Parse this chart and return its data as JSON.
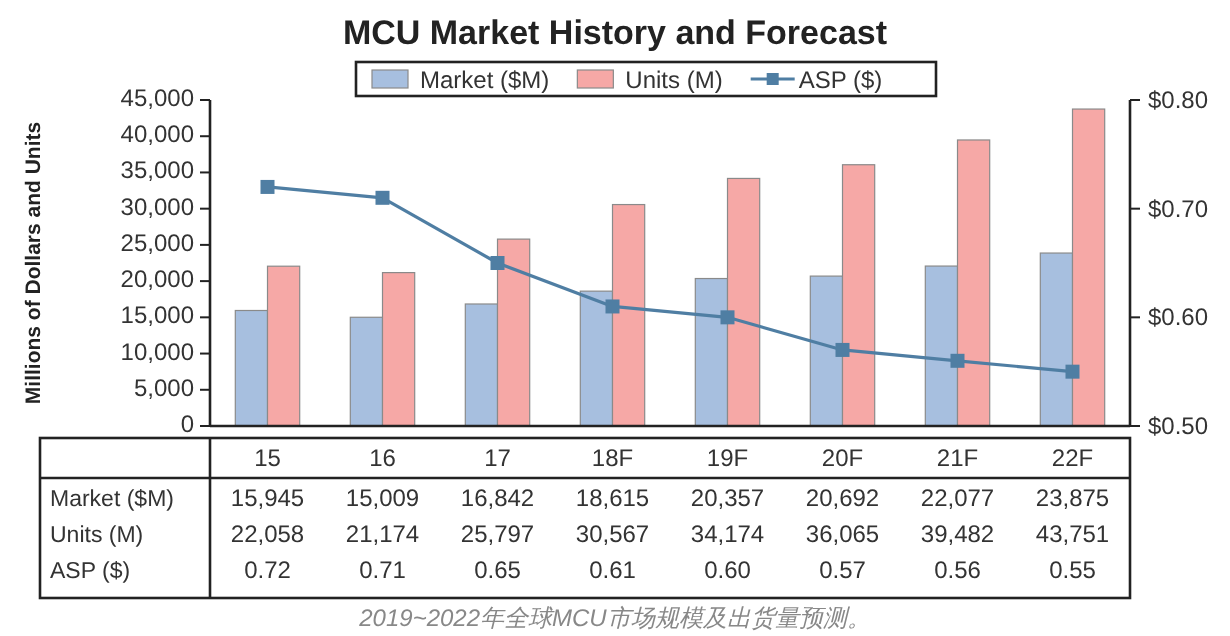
{
  "chart_data": {
    "type": "bar",
    "title": "MCU Market History and Forecast",
    "ylabel": "Millions of Dollars and Units",
    "categories": [
      "15",
      "16",
      "17",
      "18F",
      "19F",
      "20F",
      "21F",
      "22F"
    ],
    "series": [
      {
        "name": "Market ($M)",
        "color": "#a7bfdf",
        "values": [
          15945,
          15009,
          16842,
          18615,
          20357,
          20692,
          22077,
          23875
        ],
        "value_labels": [
          "15,945",
          "15,009",
          "16,842",
          "18,615",
          "20,357",
          "20,692",
          "22,077",
          "23,875"
        ]
      },
      {
        "name": "Units (M)",
        "color": "#f6a8a6",
        "values": [
          22058,
          21174,
          25797,
          30567,
          34174,
          36065,
          39482,
          43751
        ],
        "value_labels": [
          "22,058",
          "21,174",
          "25,797",
          "30,567",
          "34,174",
          "36,065",
          "39,482",
          "43,751"
        ]
      },
      {
        "name": "ASP ($)",
        "type": "line",
        "axis": "y2",
        "color": "#4f7ea3",
        "marker": "square",
        "values": [
          0.72,
          0.71,
          0.65,
          0.61,
          0.6,
          0.57,
          0.56,
          0.55
        ],
        "value_labels": [
          "0.72",
          "0.71",
          "0.65",
          "0.61",
          "0.60",
          "0.57",
          "0.56",
          "0.55"
        ]
      }
    ],
    "ylim": [
      0,
      45000
    ],
    "yticks": [
      {
        "value": 0,
        "label": "0"
      },
      {
        "value": 5000,
        "label": "5,000"
      },
      {
        "value": 10000,
        "label": "10,000"
      },
      {
        "value": 15000,
        "label": "15,000"
      },
      {
        "value": 20000,
        "label": "20,000"
      },
      {
        "value": 25000,
        "label": "25,000"
      },
      {
        "value": 30000,
        "label": "30,000"
      },
      {
        "value": 35000,
        "label": "35,000"
      },
      {
        "value": 40000,
        "label": "40,000"
      },
      {
        "value": 45000,
        "label": "45,000"
      }
    ],
    "y2lim": [
      0.5,
      0.8
    ],
    "y2ticks": [
      {
        "value": 0.5,
        "label": "$0.50"
      },
      {
        "value": 0.6,
        "label": "$0.60"
      },
      {
        "value": 0.7,
        "label": "$0.70"
      },
      {
        "value": 0.8,
        "label": "$0.80"
      }
    ],
    "legend": "top",
    "annotations": [
      "2019~2022年全球MCU市场规模及出货量预测。"
    ]
  }
}
